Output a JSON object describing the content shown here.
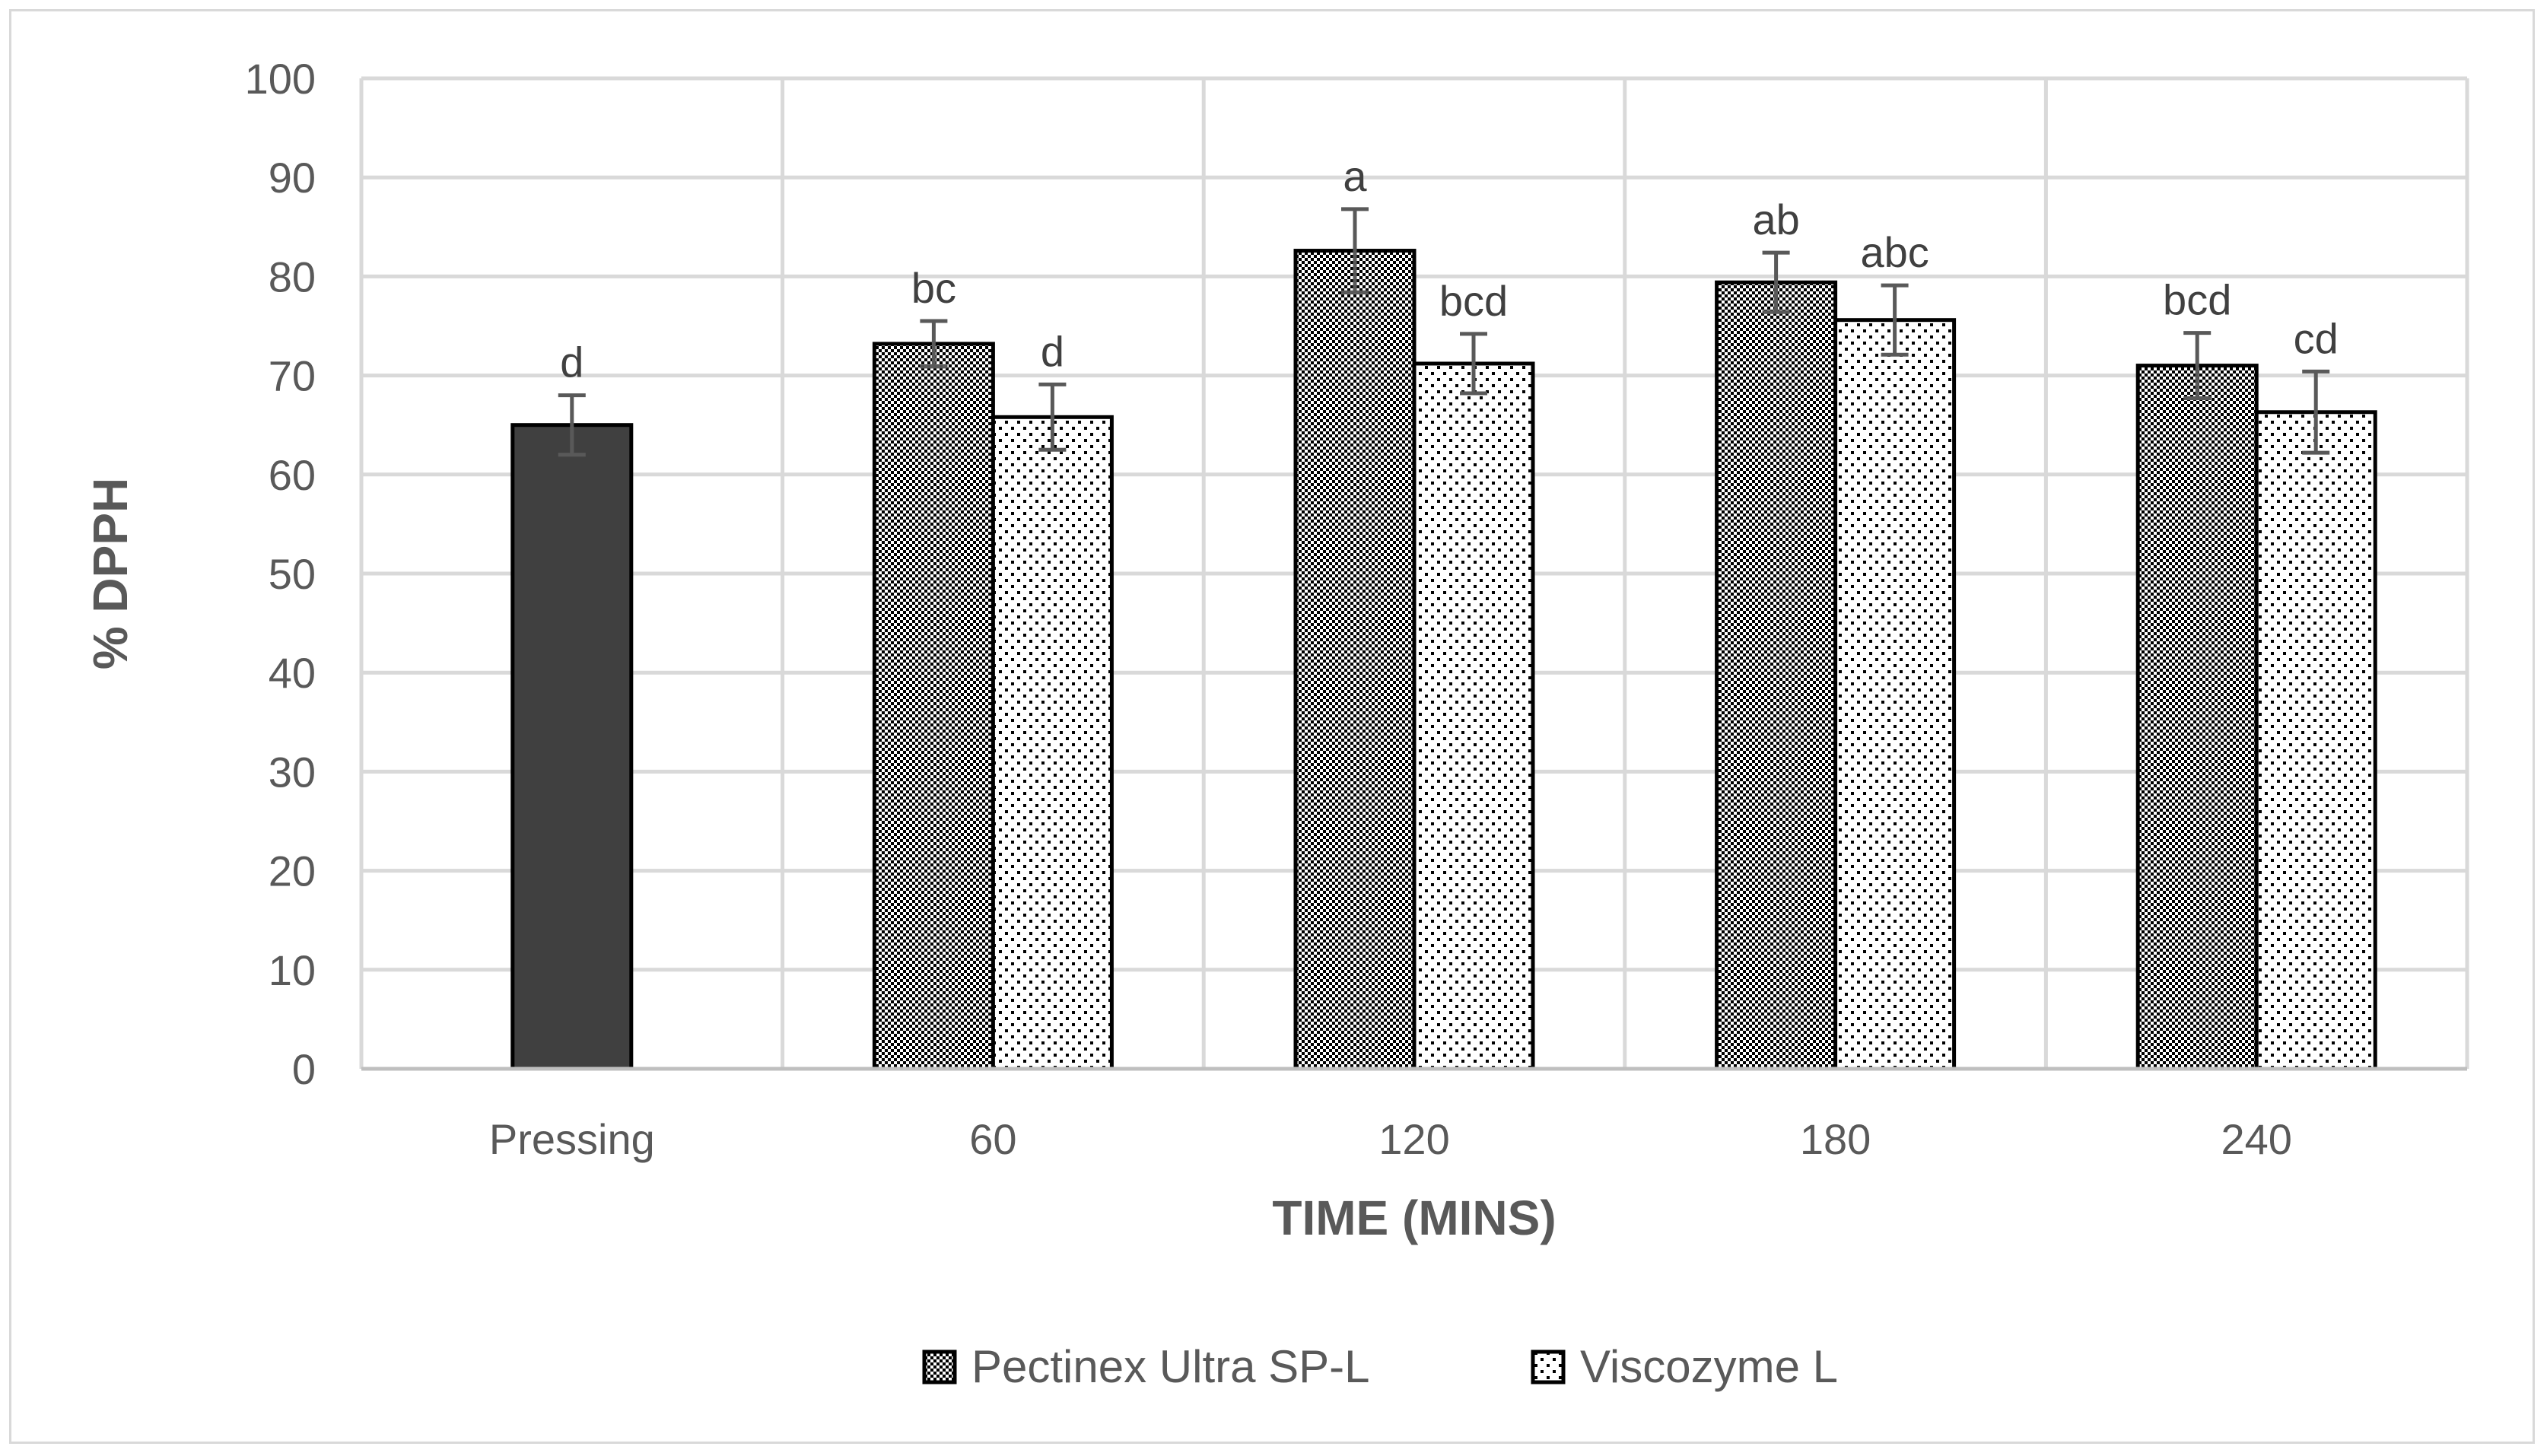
{
  "chart_data": {
    "type": "bar",
    "title": "",
    "xlabel": "TIME (MINS)",
    "ylabel": "% DPPH",
    "ylim": [
      0,
      100
    ],
    "yticks": [
      0,
      10,
      20,
      30,
      40,
      50,
      60,
      70,
      80,
      90,
      100
    ],
    "categories": [
      "Pressing",
      "60",
      "120",
      "180",
      "240"
    ],
    "grid": true,
    "legend_position": "bottom",
    "series": [
      {
        "key": "control",
        "values": [
          65,
          null,
          null,
          null,
          null
        ],
        "errors": [
          3,
          null,
          null,
          null,
          null
        ],
        "labels": [
          "d",
          null,
          null,
          null,
          null
        ],
        "color": "#404040",
        "fill": "solid",
        "in_legend": false
      },
      {
        "key": "pectinex",
        "name": "Pectinex Ultra SP-L",
        "values": [
          null,
          73.2,
          82.6,
          79.4,
          71.0
        ],
        "errors": [
          null,
          2.3,
          4.2,
          3.0,
          3.3
        ],
        "labels": [
          null,
          "bc",
          "a",
          "ab",
          "bcd"
        ],
        "color": "#000000",
        "fill": "checker",
        "in_legend": true
      },
      {
        "key": "viscozyme",
        "name": "Viscozyme L",
        "values": [
          null,
          65.8,
          71.2,
          75.6,
          66.3
        ],
        "errors": [
          null,
          3.3,
          3.0,
          3.5,
          4.1
        ],
        "labels": [
          null,
          "d",
          "bcd",
          "abc",
          "cd"
        ],
        "color": "#000000",
        "fill": "dots",
        "in_legend": true
      }
    ],
    "colors": {
      "grid": "#d9d9d9",
      "axis": "#bfbfbf",
      "error_bar": "#595959",
      "text": "#595959"
    }
  }
}
